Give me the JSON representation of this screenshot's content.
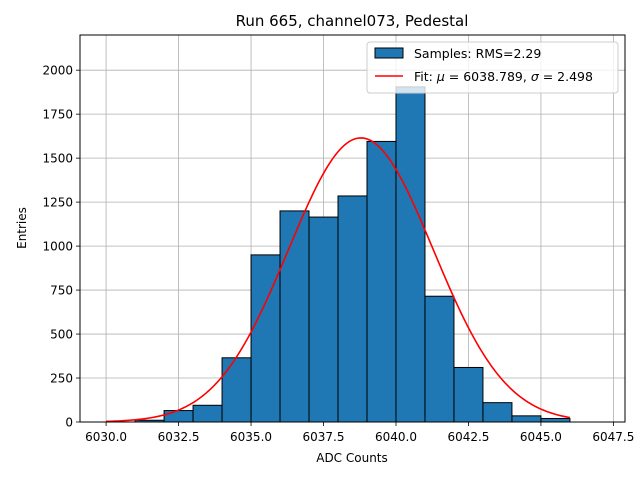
{
  "chart_data": {
    "type": "bar",
    "title": "Run 665, channel073, Pedestal",
    "xlabel": "ADC Counts",
    "ylabel": "Entries",
    "xlim": [
      6029.1,
      6047.9
    ],
    "ylim": [
      0,
      2200
    ],
    "grid": true,
    "legend_position": "top-right",
    "x_ticks": [
      "6030.0",
      "6032.5",
      "6035.0",
      "6037.5",
      "6040.0",
      "6042.5",
      "6045.0",
      "6047.5"
    ],
    "x_tick_values": [
      6030.0,
      6032.5,
      6035.0,
      6037.5,
      6040.0,
      6042.5,
      6045.0,
      6047.5
    ],
    "y_ticks": [
      "0",
      "250",
      "500",
      "750",
      "1000",
      "1250",
      "1500",
      "1750",
      "2000"
    ],
    "y_tick_values": [
      0,
      250,
      500,
      750,
      1000,
      1250,
      1500,
      1750,
      2000
    ],
    "bin_edges": [
      6031,
      6032,
      6033,
      6034,
      6035,
      6036,
      6037,
      6038,
      6039,
      6040,
      6041,
      6042,
      6043,
      6044,
      6045,
      6046
    ],
    "values": [
      10,
      65,
      95,
      365,
      950,
      1200,
      1165,
      1285,
      1595,
      1905,
      715,
      310,
      110,
      35,
      20
    ],
    "histogram_color": "#1f77b4",
    "fit": {
      "mu": 6038.789,
      "sigma": 2.498,
      "amplitude": 1615,
      "x_range": [
        6030,
        6046
      ],
      "color": "#ff0000"
    },
    "legend": [
      {
        "label": "Samples: RMS=2.29",
        "kind": "patch"
      },
      {
        "label_prefix": "Fit: ",
        "mu_symbol": "μ",
        "mu_text": " = 6038.789, ",
        "sigma_symbol": "σ",
        "sigma_text": " = 2.498",
        "kind": "line"
      }
    ]
  }
}
